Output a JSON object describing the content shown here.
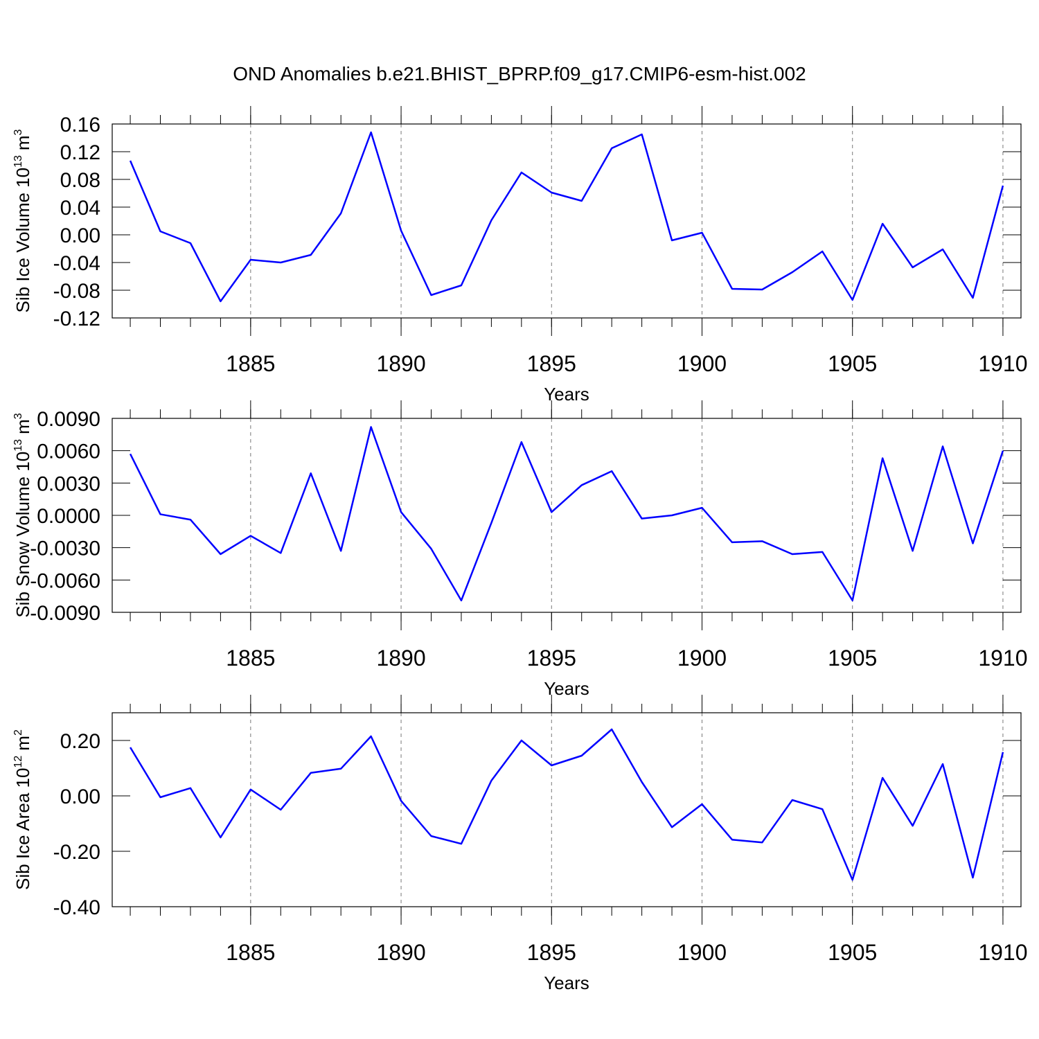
{
  "chart_data": [
    {
      "type": "line",
      "title": "OND Anomalies b.e21.BHIST_BPRP.f09_g17.CMIP6-esm-hist.002",
      "x": [
        1881,
        1882,
        1883,
        1884,
        1885,
        1886,
        1887,
        1888,
        1889,
        1890,
        1891,
        1892,
        1893,
        1894,
        1895,
        1896,
        1897,
        1898,
        1899,
        1900,
        1901,
        1902,
        1903,
        1904,
        1905,
        1906,
        1907,
        1908,
        1909,
        1910
      ],
      "values": [
        0.107,
        0.005,
        -0.012,
        -0.096,
        -0.036,
        -0.04,
        -0.029,
        0.031,
        0.148,
        0.006,
        -0.087,
        -0.073,
        0.021,
        0.09,
        0.061,
        0.049,
        0.125,
        0.145,
        -0.008,
        0.003,
        -0.078,
        -0.079,
        -0.054,
        -0.024,
        -0.094,
        0.016,
        -0.047,
        -0.021,
        -0.091,
        0.071
      ],
      "color": "#0000ff",
      "xlim": [
        1880.4,
        1910.6
      ],
      "xticks": [
        1885,
        1890,
        1895,
        1900,
        1905,
        1910
      ],
      "xlabel": "Years",
      "ylabel": {
        "base": "Sib Ice Volume 10",
        "base_exp": "13",
        "unit": "m",
        "unit_exp": "3"
      },
      "ylim": [
        -0.12,
        0.16
      ],
      "yticks": [
        -0.12,
        -0.08,
        -0.04,
        {
          "value": 0,
          "label": "0.00"
        },
        0.04,
        0.08,
        0.12,
        0.16
      ],
      "grid": true
    },
    {
      "type": "line",
      "x": [
        1881,
        1882,
        1883,
        1884,
        1885,
        1886,
        1887,
        1888,
        1889,
        1890,
        1891,
        1892,
        1893,
        1894,
        1895,
        1896,
        1897,
        1898,
        1899,
        1900,
        1901,
        1902,
        1903,
        1904,
        1905,
        1906,
        1907,
        1908,
        1909,
        1910
      ],
      "values": [
        0.0057,
        0.0001,
        -0.0004,
        -0.0036,
        -0.0019,
        -0.0035,
        0.0039,
        -0.0033,
        0.0082,
        0.0003,
        -0.0031,
        -0.0079,
        -0.0007,
        0.0068,
        0.0003,
        0.0028,
        0.0041,
        -0.0003,
        0.0,
        0.0007,
        -0.0025,
        -0.0024,
        -0.0036,
        -0.0034,
        -0.0079,
        0.0053,
        -0.0033,
        0.0064,
        -0.0026,
        0.006
      ],
      "color": "#0000ff",
      "xlim": [
        1880.4,
        1910.6
      ],
      "xticks": [
        1885,
        1890,
        1895,
        1900,
        1905,
        1910
      ],
      "xlabel": "Years",
      "ylabel": {
        "base": "Sib Snow Volume 10",
        "base_exp": "13",
        "unit": "m",
        "unit_exp": "3"
      },
      "ylim": [
        -0.009,
        0.009
      ],
      "yticks": [
        {
          "value": -0.009,
          "label": "-0.0090"
        },
        {
          "value": -0.006,
          "label": "-0.0060"
        },
        {
          "value": -0.003,
          "label": "-0.0030"
        },
        {
          "value": 0,
          "label": "0.0000"
        },
        {
          "value": 0.003,
          "label": "0.0030"
        },
        {
          "value": 0.006,
          "label": "0.0060"
        },
        {
          "value": 0.009,
          "label": "0.0090"
        }
      ],
      "grid": true
    },
    {
      "type": "line",
      "x": [
        1881,
        1882,
        1883,
        1884,
        1885,
        1886,
        1887,
        1888,
        1889,
        1890,
        1891,
        1892,
        1893,
        1894,
        1895,
        1896,
        1897,
        1898,
        1899,
        1900,
        1901,
        1902,
        1903,
        1904,
        1905,
        1906,
        1907,
        1908,
        1909,
        1910
      ],
      "values": [
        0.175,
        -0.005,
        0.028,
        -0.15,
        0.023,
        -0.05,
        0.083,
        0.098,
        0.215,
        -0.018,
        -0.145,
        -0.173,
        0.055,
        0.2,
        0.11,
        0.145,
        0.24,
        0.05,
        -0.113,
        -0.03,
        -0.158,
        -0.168,
        -0.015,
        -0.048,
        -0.303,
        0.065,
        -0.108,
        0.115,
        -0.295,
        0.158
      ],
      "color": "#0000ff",
      "xlim": [
        1880.4,
        1910.6
      ],
      "xticks": [
        1885,
        1890,
        1895,
        1900,
        1905,
        1910
      ],
      "xlabel": "Years",
      "ylabel": {
        "base": "Sib Ice Area 10",
        "base_exp": "12",
        "unit": "m",
        "unit_exp": "2"
      },
      "ylim": [
        -0.4,
        0.3
      ],
      "yticks": [
        {
          "value": -0.4,
          "label": "-0.40"
        },
        {
          "value": -0.2,
          "label": "-0.20"
        },
        {
          "value": 0,
          "label": "0.00"
        },
        {
          "value": 0.2,
          "label": "0.20"
        }
      ],
      "grid": true
    }
  ]
}
